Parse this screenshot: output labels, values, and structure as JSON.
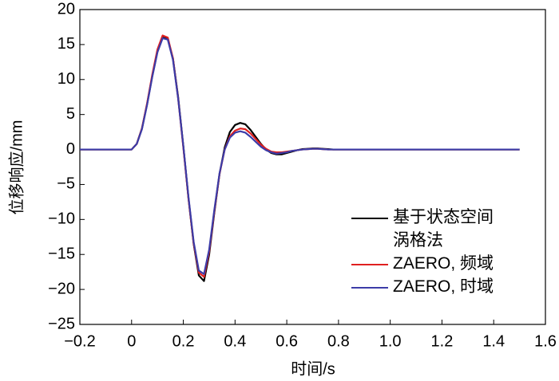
{
  "chart_data": {
    "type": "line",
    "x_label": "时间/s",
    "y_label": "位移响应/mm",
    "xlim": [
      -0.2,
      1.6
    ],
    "xticks": [
      {
        "value": -0.2,
        "label": "−0.2"
      },
      0,
      0.2,
      0.4,
      0.6,
      0.8,
      {
        "value": 1.0,
        "label": "1.0"
      },
      1.2,
      1.4,
      1.6
    ],
    "ylim": [
      -25,
      20
    ],
    "yticks": [
      {
        "value": -25,
        "label": "−25"
      },
      {
        "value": -20,
        "label": "−20"
      },
      {
        "value": -15,
        "label": "−15"
      },
      {
        "value": -10,
        "label": "−10"
      },
      {
        "value": -5,
        "label": "−5"
      },
      0,
      5,
      10,
      15,
      20
    ],
    "legend": "lower right",
    "x": [
      -0.2,
      0,
      0.02,
      0.04,
      0.06,
      0.08,
      0.1,
      0.12,
      0.14,
      0.16,
      0.18,
      0.2,
      0.22,
      0.24,
      0.26,
      0.28,
      0.3,
      0.32,
      0.34,
      0.36,
      0.38,
      0.4,
      0.42,
      0.44,
      0.46,
      0.48,
      0.5,
      0.52,
      0.54,
      0.56,
      0.58,
      0.6,
      0.62,
      0.64,
      0.66,
      0.68,
      0.7,
      0.72,
      0.74,
      0.76,
      0.78,
      0.8,
      1.0,
      1.2,
      1.5
    ],
    "series": [
      {
        "name": "基于状态空间涡格法",
        "color": "#000000",
        "values": [
          0,
          0,
          0.8,
          3,
          6.5,
          10.5,
          14,
          16,
          15.8,
          13,
          7.5,
          0.5,
          -7,
          -13.5,
          -18,
          -18.8,
          -15,
          -9,
          -3.5,
          0.3,
          2.5,
          3.5,
          3.8,
          3.6,
          2.8,
          1.8,
          0.8,
          0,
          -0.5,
          -0.7,
          -0.7,
          -0.5,
          -0.3,
          -0.1,
          0.05,
          0.1,
          0.15,
          0.15,
          0.1,
          0.05,
          0,
          0,
          0,
          0,
          0
        ]
      },
      {
        "name": "ZAERO, 频域",
        "color": "#e02020",
        "values": [
          0,
          0,
          0.8,
          3,
          6.6,
          10.7,
          14.3,
          16.3,
          16,
          13,
          7.3,
          0.3,
          -7,
          -13.4,
          -17.6,
          -18.2,
          -14.6,
          -8.8,
          -3.5,
          0,
          1.9,
          2.7,
          3,
          2.9,
          2.3,
          1.5,
          0.7,
          0.1,
          -0.3,
          -0.4,
          -0.4,
          -0.3,
          -0.2,
          -0.1,
          0,
          0.05,
          0.1,
          0.1,
          0.05,
          0,
          0,
          0,
          0,
          0,
          0
        ]
      },
      {
        "name": "ZAERO, 时域",
        "color": "#3c3ca8",
        "values": [
          0,
          0,
          0.8,
          2.9,
          6.4,
          10.4,
          13.9,
          15.9,
          15.7,
          12.8,
          7.3,
          0.5,
          -6.8,
          -13.2,
          -17.3,
          -17.8,
          -14.3,
          -8.6,
          -3.4,
          0,
          1.7,
          2.4,
          2.6,
          2.4,
          1.8,
          1.1,
          0.4,
          -0.1,
          -0.4,
          -0.6,
          -0.5,
          -0.4,
          -0.2,
          -0.1,
          0,
          0.05,
          0.1,
          0.1,
          0.05,
          0,
          0,
          0,
          0,
          0,
          0
        ]
      }
    ]
  }
}
